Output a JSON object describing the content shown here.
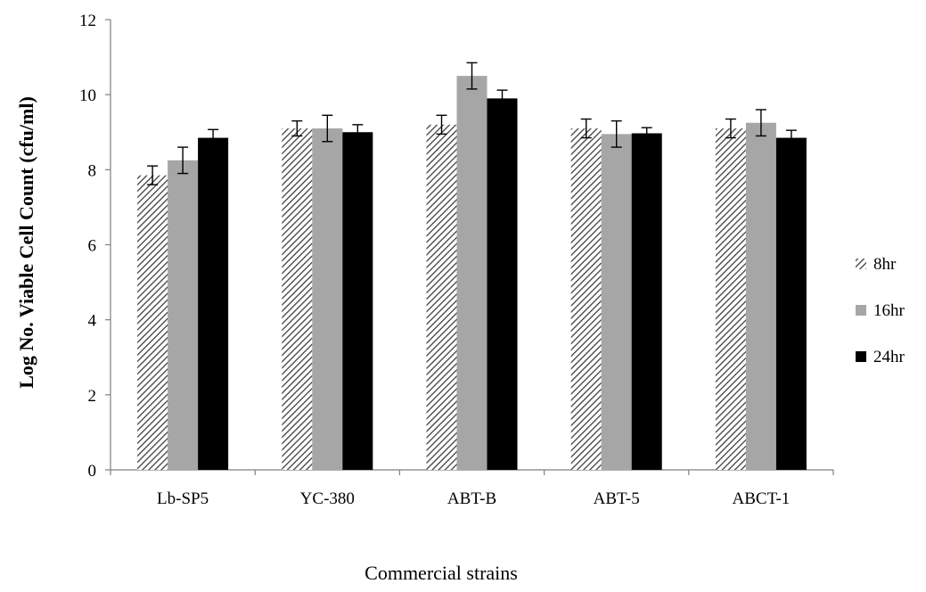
{
  "chart_data": {
    "type": "bar",
    "title": "",
    "xlabel": "Commercial strains",
    "ylabel": "Log No. Viable Cell Count (cfu/ml)",
    "ylim": [
      0,
      12
    ],
    "yticks": [
      0,
      2,
      4,
      6,
      8,
      10,
      12
    ],
    "grid": false,
    "legend_position": "right",
    "error_bars": true,
    "categories": [
      "Lb-SP5",
      "YC-380",
      "ABT-B",
      "ABT-5",
      "ABCT-1"
    ],
    "series": [
      {
        "name": "8hr",
        "fill": "hatch",
        "color": "#404040",
        "values": [
          7.85,
          9.1,
          9.2,
          9.1,
          9.1
        ],
        "errors": [
          0.25,
          0.2,
          0.25,
          0.25,
          0.25
        ]
      },
      {
        "name": "16hr",
        "fill": "solid",
        "color": "#a6a6a6",
        "values": [
          8.25,
          9.1,
          10.5,
          8.95,
          9.25
        ],
        "errors": [
          0.35,
          0.35,
          0.35,
          0.35,
          0.35
        ]
      },
      {
        "name": "24hr",
        "fill": "solid",
        "color": "#000000",
        "values": [
          8.85,
          9.0,
          9.9,
          8.97,
          8.85
        ],
        "errors": [
          0.22,
          0.2,
          0.22,
          0.15,
          0.2
        ]
      }
    ]
  }
}
